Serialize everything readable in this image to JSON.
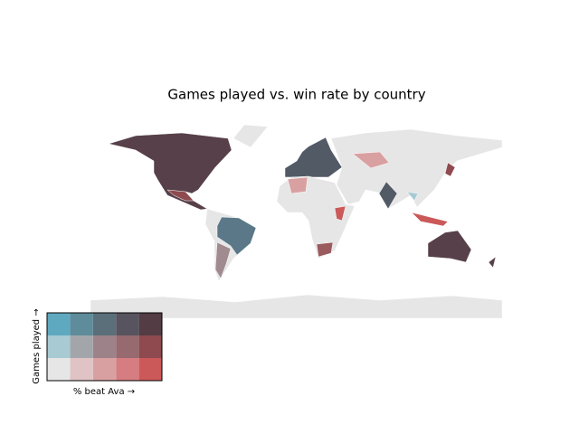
{
  "title": "Games played vs. win rate by country",
  "legend": {
    "x_label": "% beat Ava →",
    "y_label": "Games played →",
    "colors": [
      [
        "#5fa9c0",
        "#5e8c9b",
        "#5a6f79",
        "#57545f",
        "#533c44"
      ],
      [
        "#a7cad3",
        "#a2a6ab",
        "#9d8289",
        "#976a6f",
        "#8e4a4e"
      ],
      [
        "#e6e6e6",
        "#e0c3c5",
        "#d9a0a2",
        "#d57d80",
        "#cc5959"
      ]
    ]
  }
}
